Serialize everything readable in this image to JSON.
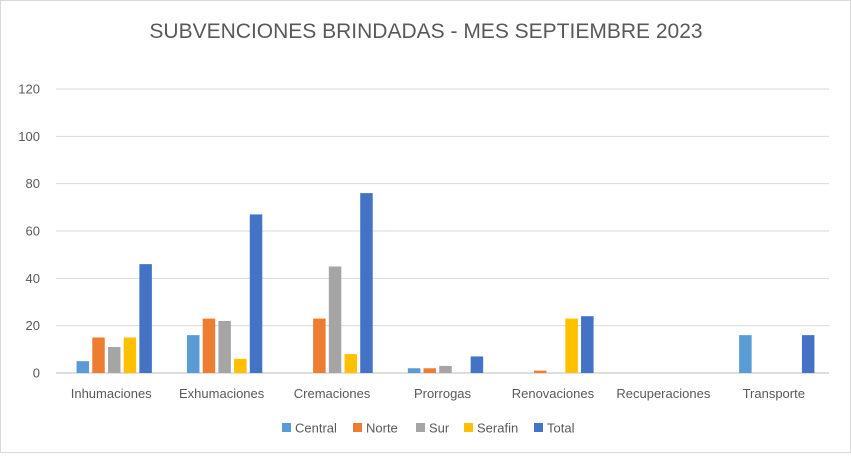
{
  "chart_data": {
    "type": "bar",
    "title": "SUBVENCIONES BRINDADAS - MES SEPTIEMBRE 2023",
    "xlabel": "",
    "ylabel": "",
    "ylim": [
      0,
      120
    ],
    "yticks": [
      0,
      20,
      40,
      60,
      80,
      100,
      120
    ],
    "grid": true,
    "legend_position": "bottom",
    "categories": [
      "Inhumaciones",
      "Exhumaciones",
      "Cremaciones",
      "Prorrogas",
      "Renovaciones",
      "Recuperaciones",
      "Transporte"
    ],
    "series": [
      {
        "name": "Central",
        "color": "#5b9bd5",
        "values": [
          5,
          16,
          0,
          2,
          0,
          0,
          16
        ]
      },
      {
        "name": "Norte",
        "color": "#ed7d31",
        "values": [
          15,
          23,
          23,
          2,
          1,
          0,
          0
        ]
      },
      {
        "name": "Sur",
        "color": "#a5a5a5",
        "values": [
          11,
          22,
          45,
          3,
          0,
          0,
          0
        ]
      },
      {
        "name": "Serafin",
        "color": "#ffc000",
        "values": [
          15,
          6,
          8,
          0,
          23,
          0,
          0
        ]
      },
      {
        "name": "Total",
        "color": "#4472c4",
        "values": [
          46,
          67,
          76,
          7,
          24,
          0,
          16
        ]
      }
    ]
  }
}
